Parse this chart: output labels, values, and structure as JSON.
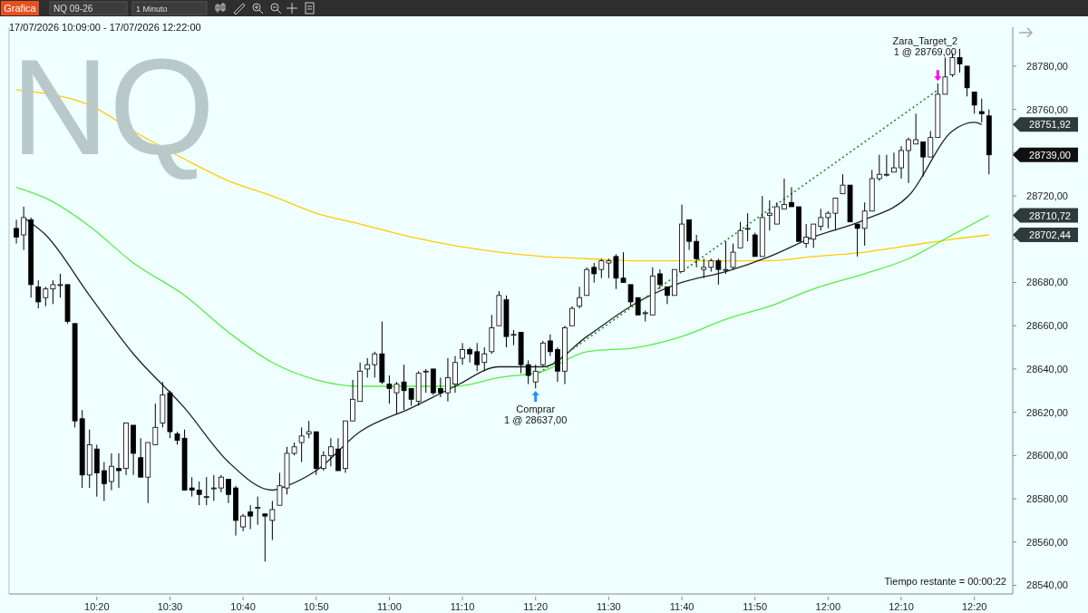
{
  "chart_data": {
    "type": "candlestick",
    "title": "17/07/2026 10:09:00 - 17/07/2026 12:22:00",
    "subtitle": "NQ",
    "x": [
      "2026-07-17T10:09",
      "2026-07-17T10:10",
      "2026-07-17T10:11",
      "2026-07-17T10:12",
      "2026-07-17T10:13",
      "2026-07-17T10:14",
      "2026-07-17T10:15",
      "2026-07-17T10:16",
      "2026-07-17T10:17",
      "2026-07-17T10:18",
      "2026-07-17T10:19",
      "2026-07-17T10:20",
      "2026-07-17T10:21",
      "2026-07-17T10:22",
      "2026-07-17T10:23",
      "2026-07-17T10:24",
      "2026-07-17T10:25",
      "2026-07-17T10:26",
      "2026-07-17T10:27",
      "2026-07-17T10:28",
      "2026-07-17T10:29",
      "2026-07-17T10:30",
      "2026-07-17T10:31",
      "2026-07-17T10:32",
      "2026-07-17T10:33",
      "2026-07-17T10:34",
      "2026-07-17T10:35",
      "2026-07-17T10:36",
      "2026-07-17T10:37",
      "2026-07-17T10:38",
      "2026-07-17T10:39",
      "2026-07-17T10:40",
      "2026-07-17T10:41",
      "2026-07-17T10:42",
      "2026-07-17T10:43",
      "2026-07-17T10:44",
      "2026-07-17T10:45",
      "2026-07-17T10:46",
      "2026-07-17T10:47",
      "2026-07-17T10:48",
      "2026-07-17T10:49",
      "2026-07-17T10:50",
      "2026-07-17T10:51",
      "2026-07-17T10:52",
      "2026-07-17T10:53",
      "2026-07-17T10:54",
      "2026-07-17T10:55",
      "2026-07-17T10:56",
      "2026-07-17T10:57",
      "2026-07-17T10:58",
      "2026-07-17T10:59",
      "2026-07-17T11:00",
      "2026-07-17T11:01",
      "2026-07-17T11:02",
      "2026-07-17T11:03",
      "2026-07-17T11:04",
      "2026-07-17T11:05",
      "2026-07-17T11:06",
      "2026-07-17T11:07",
      "2026-07-17T11:08",
      "2026-07-17T11:09",
      "2026-07-17T11:10",
      "2026-07-17T11:11",
      "2026-07-17T11:12",
      "2026-07-17T11:13",
      "2026-07-17T11:14",
      "2026-07-17T11:15",
      "2026-07-17T11:16",
      "2026-07-17T11:17",
      "2026-07-17T11:18",
      "2026-07-17T11:19",
      "2026-07-17T11:20",
      "2026-07-17T11:21",
      "2026-07-17T11:22",
      "2026-07-17T11:23",
      "2026-07-17T11:24",
      "2026-07-17T11:25",
      "2026-07-17T11:26",
      "2026-07-17T11:27",
      "2026-07-17T11:28",
      "2026-07-17T11:29",
      "2026-07-17T11:30",
      "2026-07-17T11:31",
      "2026-07-17T11:32",
      "2026-07-17T11:33",
      "2026-07-17T11:34",
      "2026-07-17T11:35",
      "2026-07-17T11:36",
      "2026-07-17T11:37",
      "2026-07-17T11:38",
      "2026-07-17T11:39",
      "2026-07-17T11:40",
      "2026-07-17T11:41",
      "2026-07-17T11:42",
      "2026-07-17T11:43",
      "2026-07-17T11:44",
      "2026-07-17T11:45",
      "2026-07-17T11:46",
      "2026-07-17T11:47",
      "2026-07-17T11:48",
      "2026-07-17T11:49",
      "2026-07-17T11:50",
      "2026-07-17T11:51",
      "2026-07-17T11:52",
      "2026-07-17T11:53",
      "2026-07-17T11:54",
      "2026-07-17T11:55",
      "2026-07-17T11:56",
      "2026-07-17T11:57",
      "2026-07-17T11:58",
      "2026-07-17T11:59",
      "2026-07-17T12:00",
      "2026-07-17T12:01",
      "2026-07-17T12:02",
      "2026-07-17T12:03",
      "2026-07-17T12:04",
      "2026-07-17T12:05",
      "2026-07-17T12:06",
      "2026-07-17T12:07",
      "2026-07-17T12:08",
      "2026-07-17T12:09",
      "2026-07-17T12:10",
      "2026-07-17T12:11",
      "2026-07-17T12:12",
      "2026-07-17T12:13",
      "2026-07-17T12:14",
      "2026-07-17T12:15",
      "2026-07-17T12:16",
      "2026-07-17T12:17",
      "2026-07-17T12:18",
      "2026-07-17T12:19",
      "2026-07-17T12:20",
      "2026-07-17T12:21",
      "2026-07-17T12:22"
    ],
    "ohlc": [
      [
        28705,
        28709,
        28698,
        28701
      ],
      [
        28702,
        28715,
        28695,
        28710
      ],
      [
        28709,
        28710,
        28673,
        28679
      ],
      [
        28678,
        28681,
        28668,
        28671
      ],
      [
        28673,
        28678,
        28669,
        28677
      ],
      [
        28677,
        28681,
        28670,
        28679
      ],
      [
        28679,
        28684,
        28673,
        28679
      ],
      [
        28679,
        28679,
        28661,
        28662
      ],
      [
        28661,
        28661,
        28613,
        28616
      ],
      [
        28617,
        28621,
        28585,
        28591
      ],
      [
        28591,
        28612,
        28585,
        28605
      ],
      [
        28603,
        28605,
        28581,
        28592
      ],
      [
        28593,
        28597,
        28579,
        28587
      ],
      [
        28588,
        28601,
        28584,
        28595
      ],
      [
        28594,
        28601,
        28585,
        28593
      ],
      [
        28594,
        28615,
        28591,
        28615
      ],
      [
        28614,
        28614,
        28591,
        28601
      ],
      [
        28599,
        28608,
        28590,
        28590
      ],
      [
        28590,
        28606,
        28578,
        28606
      ],
      [
        28605,
        28624,
        28605,
        28613
      ],
      [
        28615,
        28634,
        28613,
        28628
      ],
      [
        28629,
        28630,
        28608,
        28611
      ],
      [
        28610,
        28611,
        28605,
        28607
      ],
      [
        28608,
        28612,
        28584,
        28584
      ],
      [
        28585,
        28590,
        28581,
        28584
      ],
      [
        28584,
        28588,
        28577,
        28582
      ],
      [
        28581,
        28590,
        28577,
        28581
      ],
      [
        28585,
        28591,
        28579,
        28585
      ],
      [
        28585,
        28591,
        28583,
        28590
      ],
      [
        28589,
        28589,
        28578,
        28582
      ],
      [
        28585,
        28586,
        28563,
        28570
      ],
      [
        28567,
        28573,
        28565,
        28572
      ],
      [
        28574,
        28577,
        28566,
        28572
      ],
      [
        28576,
        28581,
        28568,
        28576
      ],
      [
        28573,
        28573,
        28551,
        28572
      ],
      [
        28570,
        28579,
        28561,
        28575
      ],
      [
        28577,
        28592,
        28577,
        28586
      ],
      [
        28585,
        28604,
        28582,
        28601
      ],
      [
        28601,
        28606,
        28600,
        28604
      ],
      [
        28606,
        28613,
        28597,
        28609
      ],
      [
        28610,
        28616,
        28608,
        28611
      ],
      [
        28611,
        28611,
        28591,
        28594
      ],
      [
        28594,
        28602,
        28593,
        28600
      ],
      [
        28600,
        28608,
        28595,
        28604
      ],
      [
        28603,
        28608,
        28593,
        28593
      ],
      [
        28594,
        28616,
        28592,
        28616
      ],
      [
        28616,
        28635,
        28616,
        28626
      ],
      [
        28625,
        28643,
        28625,
        28639
      ],
      [
        28640,
        28645,
        28636,
        28642
      ],
      [
        28642,
        28648,
        28636,
        28647
      ],
      [
        28647,
        28662,
        28633,
        28634
      ],
      [
        28633,
        28637,
        28624,
        28631
      ],
      [
        28629,
        28634,
        28619,
        28633
      ],
      [
        28634,
        28642,
        28621,
        28630
      ],
      [
        28631,
        28631,
        28623,
        28626
      ],
      [
        28625,
        28639,
        28623,
        28638
      ],
      [
        28639,
        28640,
        28629,
        28639
      ],
      [
        28640,
        28640,
        28628,
        28629
      ],
      [
        28631,
        28636,
        28627,
        28629
      ],
      [
        28629,
        28645,
        28625,
        28636
      ],
      [
        28633,
        28646,
        28629,
        28643
      ],
      [
        28645,
        28652,
        28642,
        28649
      ],
      [
        28649,
        28650,
        28643,
        28647
      ],
      [
        28648,
        28652,
        28639,
        28642
      ],
      [
        28643,
        28650,
        28639,
        28647
      ],
      [
        28648,
        28665,
        28647,
        28659
      ],
      [
        28660,
        28676,
        28660,
        28674
      ],
      [
        28672,
        28674,
        28650,
        28655
      ],
      [
        28656,
        28658,
        28651,
        28656
      ],
      [
        28657,
        28657,
        28638,
        28642
      ],
      [
        28642,
        28644,
        28633,
        28637
      ],
      [
        28634,
        28642,
        28631,
        28639
      ],
      [
        28642,
        28653,
        28641,
        28652
      ],
      [
        28653,
        28656,
        28646,
        28648
      ],
      [
        28649,
        28650,
        28634,
        28639
      ],
      [
        28639,
        28660,
        28633,
        28659
      ],
      [
        28660,
        28669,
        28660,
        28668
      ],
      [
        28669,
        28678,
        28668,
        28673
      ],
      [
        28674,
        28687,
        28674,
        28686
      ],
      [
        28687,
        28689,
        28680,
        28684
      ],
      [
        28686,
        28691,
        28682,
        28690
      ],
      [
        28689,
        28691,
        28682,
        28690
      ],
      [
        28692,
        28693,
        28677,
        28682
      ],
      [
        28682,
        28694,
        28680,
        28680
      ],
      [
        28679,
        28679,
        28669,
        28671
      ],
      [
        28673,
        28673,
        28665,
        28665
      ],
      [
        28666,
        28667,
        28662,
        28666
      ],
      [
        28665,
        28687,
        28665,
        28683
      ],
      [
        28684,
        28686,
        28677,
        28679
      ],
      [
        28678,
        28678,
        28670,
        28674
      ],
      [
        28674,
        28686,
        28674,
        28686
      ],
      [
        28685,
        28716,
        28685,
        28707
      ],
      [
        28709,
        28709,
        28695,
        28699
      ],
      [
        28699,
        28702,
        28687,
        28691
      ],
      [
        28686,
        28691,
        28682,
        28687
      ],
      [
        28687,
        28691,
        28685,
        28690
      ],
      [
        28690,
        28691,
        28679,
        28686
      ],
      [
        28686,
        28699,
        28684,
        28686
      ],
      [
        28687,
        28698,
        28686,
        28694
      ],
      [
        28696,
        28708,
        28696,
        28704
      ],
      [
        28705,
        28712,
        28699,
        28705
      ],
      [
        28702,
        28703,
        28692,
        28692
      ],
      [
        28692,
        28720,
        28692,
        28710
      ],
      [
        28711,
        28718,
        28704,
        28712
      ],
      [
        28707,
        28717,
        28707,
        28715
      ],
      [
        28714,
        28728,
        28714,
        28716
      ],
      [
        28717,
        28724,
        28715,
        28715
      ],
      [
        28715,
        28715,
        28699,
        28699
      ],
      [
        28698,
        28707,
        28696,
        28701
      ],
      [
        28700,
        28707,
        28696,
        28707
      ],
      [
        28706,
        28714,
        28704,
        28710
      ],
      [
        28710,
        28713,
        28705,
        28712
      ],
      [
        28712,
        28719,
        28704,
        28719
      ],
      [
        28721,
        28730,
        28721,
        28725
      ],
      [
        28725,
        28725,
        28708,
        28708
      ],
      [
        28707,
        28707,
        28692,
        28705
      ],
      [
        28705,
        28717,
        28697,
        28713
      ],
      [
        28713,
        28732,
        28713,
        28728
      ],
      [
        28728,
        28739,
        28727,
        28730
      ],
      [
        28730,
        28739,
        28729,
        28730
      ],
      [
        28731,
        28740,
        28731,
        28733
      ],
      [
        28733,
        28743,
        28728,
        28741
      ],
      [
        28741,
        28747,
        28726,
        28746
      ],
      [
        28744,
        28758,
        28744,
        28746
      ],
      [
        28745,
        28745,
        28729,
        28738
      ],
      [
        28738,
        28750,
        28738,
        28747
      ],
      [
        28747,
        28772,
        28747,
        28767
      ],
      [
        28767,
        28784,
        28767,
        28775
      ],
      [
        28776,
        28786,
        28775,
        28784
      ],
      [
        28784,
        28788,
        28777,
        28781
      ],
      [
        28780,
        28780,
        28766,
        28770
      ],
      [
        28768,
        28768,
        28758,
        28762
      ],
      [
        28759,
        28765,
        28754,
        28758
      ],
      [
        28757,
        28760,
        28730,
        28739
      ]
    ],
    "series": [
      {
        "type": "line",
        "color": "#ffcc00",
        "x": [
          "2026-07-17T10:09",
          "2026-07-17T10:19",
          "2026-07-17T10:25",
          "2026-07-17T10:32",
          "2026-07-17T10:38",
          "2026-07-17T10:44",
          "2026-07-17T10:50",
          "2026-07-17T10:56",
          "2026-07-17T11:03",
          "2026-07-17T11:09",
          "2026-07-17T11:15",
          "2026-07-17T11:21",
          "2026-07-17T11:27",
          "2026-07-17T11:34",
          "2026-07-17T11:40",
          "2026-07-17T11:46",
          "2026-07-17T11:52",
          "2026-07-17T11:58",
          "2026-07-17T12:05",
          "2026-07-17T12:11",
          "2026-07-17T12:17",
          "2026-07-17T12:22"
        ],
        "values": [
          28769,
          28762,
          28750,
          28737,
          28727,
          28720,
          28712,
          28707,
          28701,
          28697,
          28694,
          28692,
          28691,
          28690,
          28690,
          28690,
          28690,
          28692,
          28694,
          28697,
          28700,
          28702
        ]
      },
      {
        "type": "line",
        "color": "#55ee44",
        "x": [
          "2026-07-17T10:09",
          "2026-07-17T10:13",
          "2026-07-17T10:19",
          "2026-07-17T10:25",
          "2026-07-17T10:32",
          "2026-07-17T10:38",
          "2026-07-17T10:44",
          "2026-07-17T10:50",
          "2026-07-17T10:56",
          "2026-07-17T11:03",
          "2026-07-17T11:09",
          "2026-07-17T11:15",
          "2026-07-17T11:21",
          "2026-07-17T11:27",
          "2026-07-17T11:34",
          "2026-07-17T11:40",
          "2026-07-17T11:46",
          "2026-07-17T11:52",
          "2026-07-17T11:58",
          "2026-07-17T12:05",
          "2026-07-17T12:11",
          "2026-07-17T12:17",
          "2026-07-17T12:22"
        ],
        "values": [
          28724,
          28719,
          28706,
          28689,
          28674,
          28657,
          28643,
          28635,
          28632,
          28632,
          28632,
          28636,
          28639,
          28648,
          28650,
          28655,
          28663,
          28669,
          28677,
          28684,
          28691,
          28702,
          28711
        ]
      },
      {
        "type": "line",
        "color": "#222222",
        "x": [
          "2026-07-17T10:10",
          "2026-07-17T10:13",
          "2026-07-17T10:19",
          "2026-07-17T10:25",
          "2026-07-17T10:32",
          "2026-07-17T10:38",
          "2026-07-17T10:44",
          "2026-07-17T10:46",
          "2026-07-17T10:50",
          "2026-07-17T10:56",
          "2026-07-17T11:03",
          "2026-07-17T11:09",
          "2026-07-17T11:15",
          "2026-07-17T11:21",
          "2026-07-17T11:27",
          "2026-07-17T11:34",
          "2026-07-17T11:40",
          "2026-07-17T11:46",
          "2026-07-17T11:52",
          "2026-07-17T11:58",
          "2026-07-17T12:05",
          "2026-07-17T12:11",
          "2026-07-17T12:17",
          "2026-07-17T12:20",
          "2026-07-17T12:21"
        ],
        "values": [
          28710,
          28702,
          28674,
          28647,
          28622,
          28597,
          28584,
          28586,
          28593,
          28611,
          28622,
          28632,
          28641,
          28641,
          28655,
          28671,
          28680,
          28685,
          28692,
          28701,
          28709,
          28720,
          28750,
          28754,
          28753
        ]
      },
      {
        "type": "line",
        "color": "#228b22",
        "line_style": "dotted",
        "x": [
          "2026-07-17T11:20",
          "2026-07-17T12:15"
        ],
        "values": [
          28637,
          28769
        ]
      }
    ],
    "xlim": [
      "2026-07-17T10:08",
      "2026-07-17T12:25"
    ],
    "xticks": [
      {
        "value": "2026-07-17T10:20",
        "label": "10:20"
      },
      {
        "value": "2026-07-17T10:30",
        "label": "10:30"
      },
      {
        "value": "2026-07-17T10:40",
        "label": "10:40"
      },
      {
        "value": "2026-07-17T10:50",
        "label": "10:50"
      },
      {
        "value": "2026-07-17T11:00",
        "label": "11:00"
      },
      {
        "value": "2026-07-17T11:10",
        "label": "11:10"
      },
      {
        "value": "2026-07-17T11:20",
        "label": "11:20"
      },
      {
        "value": "2026-07-17T11:30",
        "label": "11:30"
      },
      {
        "value": "2026-07-17T11:40",
        "label": "11:40"
      },
      {
        "value": "2026-07-17T11:50",
        "label": "11:50"
      },
      {
        "value": "2026-07-17T12:00",
        "label": "12:00"
      },
      {
        "value": "2026-07-17T12:10",
        "label": "12:10"
      },
      {
        "value": "2026-07-17T12:20",
        "label": "12:20"
      }
    ],
    "ylim": [
      28536,
      28798
    ],
    "yticks": [
      {
        "value": 28540,
        "label": "28540,00"
      },
      {
        "value": 28560,
        "label": "28560,00"
      },
      {
        "value": 28580,
        "label": "28580,00"
      },
      {
        "value": 28600,
        "label": "28600,00"
      },
      {
        "value": 28620,
        "label": "28620,00"
      },
      {
        "value": 28640,
        "label": "28640,00"
      },
      {
        "value": 28660,
        "label": "28660,00"
      },
      {
        "value": 28680,
        "label": "28680,00"
      },
      {
        "value": 28700,
        "label": null
      },
      {
        "value": 28720,
        "label": "28720,00"
      },
      {
        "value": 28740,
        "label": null
      },
      {
        "value": 28760,
        "label": "28760,00"
      },
      {
        "value": 28780,
        "label": "28780,00"
      }
    ],
    "annotations": [
      "Grafica",
      "NQ 09-26",
      "1 Minuto",
      "Tiempo restante = 00:00:22",
      "Comprar",
      "1 @ 28637,00",
      "Zara_Target_2",
      "1 @ 28769,00",
      "28751,92",
      "28739,00",
      "28710,72",
      "28702,44"
    ]
  }
}
